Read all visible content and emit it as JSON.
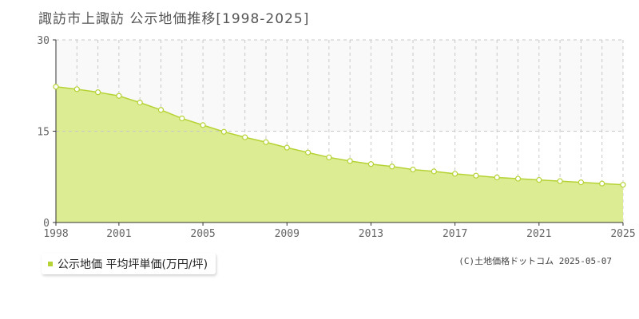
{
  "title": "諏訪市上諏訪 公示地価推移[1998-2025]",
  "legend": {
    "label": "公示地価 平均坪単価(万円/坪)"
  },
  "copyright": "(C)土地価格ドットコム 2025-05-07",
  "colors": {
    "area_fill": "#dcec92",
    "line": "#b5d335",
    "marker_fill": "#ffffff",
    "grid": "#c8c8c8",
    "upper_band": "#f9f9f9",
    "axis": "#333333"
  },
  "chart_data": {
    "type": "area",
    "x": [
      1998,
      1999,
      2000,
      2001,
      2002,
      2003,
      2004,
      2005,
      2006,
      2007,
      2008,
      2009,
      2010,
      2011,
      2012,
      2013,
      2014,
      2015,
      2016,
      2017,
      2018,
      2019,
      2020,
      2021,
      2022,
      2023,
      2024,
      2025
    ],
    "series": [
      {
        "name": "公示地価 平均坪単価(万円/坪)",
        "values": [
          22.3,
          21.9,
          21.4,
          20.8,
          19.7,
          18.5,
          17.1,
          16.0,
          14.9,
          14.0,
          13.2,
          12.3,
          11.5,
          10.7,
          10.1,
          9.6,
          9.2,
          8.7,
          8.4,
          8.0,
          7.7,
          7.4,
          7.2,
          7.0,
          6.8,
          6.6,
          6.4,
          6.2
        ]
      }
    ],
    "x_tick_labels": [
      "1998",
      "2001",
      "2005",
      "2009",
      "2013",
      "2017",
      "2021",
      "2025"
    ],
    "y_ticks": [
      0,
      15,
      30
    ],
    "y_tick_labels": [
      "0",
      "15",
      "30"
    ],
    "ylim": [
      0,
      30
    ],
    "xlim": [
      1998,
      2025
    ],
    "grid": true
  }
}
